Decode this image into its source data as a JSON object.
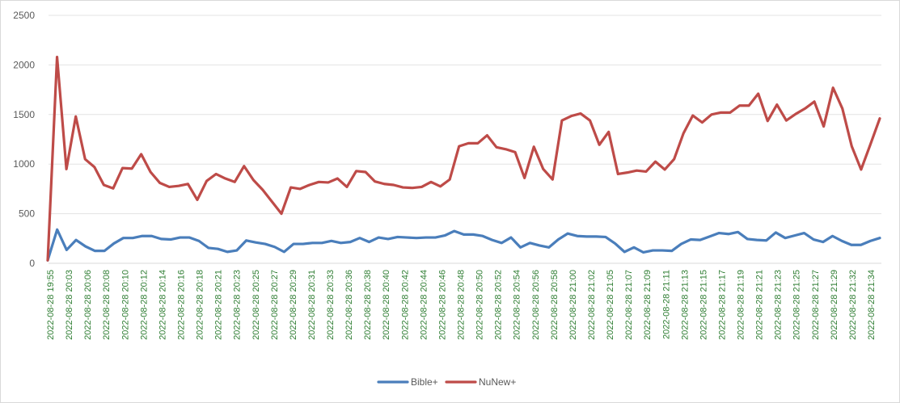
{
  "chart_data": {
    "type": "line",
    "title": "",
    "xlabel": "",
    "ylabel": "",
    "ylim": [
      0,
      2500
    ],
    "yticks": [
      0,
      500,
      1000,
      1500,
      2000,
      2500
    ],
    "grid": true,
    "legend_position": "bottom",
    "x_tick_labels": [
      "2022-08-28 19:55",
      "2022-08-28 20:03",
      "2022-08-28 20:06",
      "2022-08-28 20:08",
      "2022-08-28 20:10",
      "2022-08-28 20:12",
      "2022-08-28 20:14",
      "2022-08-28 20:16",
      "2022-08-28 20:18",
      "2022-08-28 20:21",
      "2022-08-28 20:23",
      "2022-08-28 20:25",
      "2022-08-28 20:27",
      "2022-08-28 20:29",
      "2022-08-28 20:31",
      "2022-08-28 20:33",
      "2022-08-28 20:36",
      "2022-08-28 20:38",
      "2022-08-28 20:40",
      "2022-08-28 20:42",
      "2022-08-28 20:44",
      "2022-08-28 20:46",
      "2022-08-28 20:48",
      "2022-08-28 20:50",
      "2022-08-28 20:52",
      "2022-08-28 20:54",
      "2022-08-28 20:56",
      "2022-08-28 20:58",
      "2022-08-28 21:00",
      "2022-08-28 21:02",
      "2022-08-28 21:05",
      "2022-08-28 21:07",
      "2022-08-28 21:09",
      "2022-08-28 21:11",
      "2022-08-28 21:13",
      "2022-08-28 21:15",
      "2022-08-28 21:17",
      "2022-08-28 21:19",
      "2022-08-28 21:21",
      "2022-08-28 21:23",
      "2022-08-28 21:25",
      "2022-08-28 21:27",
      "2022-08-28 21:29",
      "2022-08-28 21:32",
      "2022-08-28 21:34"
    ],
    "series": [
      {
        "name": "Bible+",
        "color": "#4a7ebb",
        "values": [
          30,
          340,
          135,
          235,
          170,
          125,
          125,
          200,
          255,
          255,
          275,
          275,
          245,
          240,
          260,
          260,
          225,
          155,
          145,
          115,
          130,
          230,
          210,
          195,
          165,
          115,
          195,
          195,
          205,
          205,
          225,
          205,
          215,
          255,
          215,
          260,
          245,
          265,
          260,
          255,
          260,
          260,
          280,
          325,
          290,
          290,
          275,
          235,
          205,
          260,
          160,
          205,
          180,
          160,
          240,
          300,
          275,
          270,
          270,
          265,
          200,
          115,
          160,
          110,
          130,
          130,
          125,
          195,
          240,
          235,
          270,
          305,
          295,
          315,
          245,
          235,
          230,
          310,
          255,
          280,
          305,
          240,
          215,
          275,
          225,
          185,
          185,
          225,
          255
        ]
      },
      {
        "name": "NuNew+",
        "color": "#be4b48",
        "values": [
          30,
          2080,
          950,
          1480,
          1050,
          970,
          790,
          755,
          960,
          955,
          1100,
          920,
          810,
          770,
          780,
          800,
          640,
          830,
          900,
          855,
          820,
          980,
          840,
          740,
          620,
          500,
          765,
          750,
          790,
          820,
          815,
          855,
          770,
          930,
          920,
          825,
          800,
          790,
          765,
          760,
          770,
          820,
          775,
          845,
          1180,
          1210,
          1210,
          1290,
          1170,
          1150,
          1120,
          860,
          1175,
          950,
          845,
          1440,
          1485,
          1510,
          1440,
          1195,
          1325,
          900,
          915,
          935,
          925,
          1025,
          945,
          1050,
          1310,
          1490,
          1420,
          1500,
          1520,
          1520,
          1590,
          1590,
          1710,
          1435,
          1600,
          1440,
          1505,
          1560,
          1630,
          1380,
          1770,
          1560,
          1180,
          945,
          1200,
          1460
        ]
      }
    ]
  }
}
